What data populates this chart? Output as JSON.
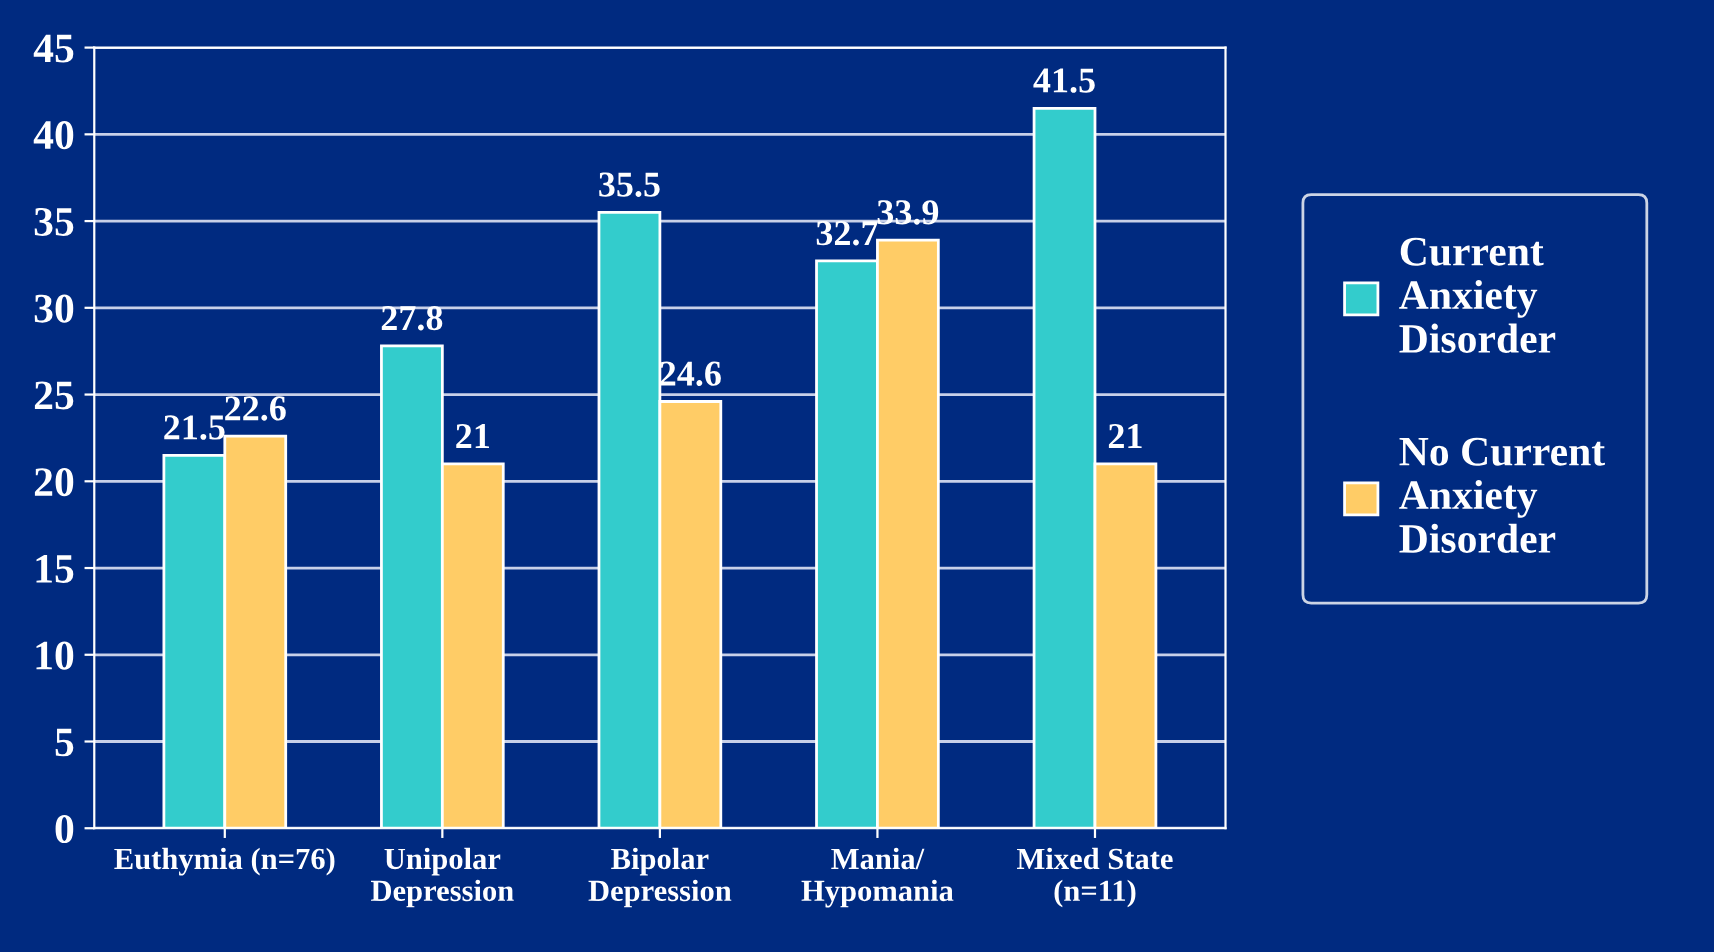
{
  "chart_data": {
    "type": "bar",
    "categories": [
      "Euthymia (n=76)",
      "Unipolar\nDepression",
      "Bipolar\nDepression",
      "Mania/\nHypomania",
      "Mixed State\n(n=11)"
    ],
    "series": [
      {
        "name": "Current\nAnxiety\nDisorder",
        "color": "#33cccc",
        "values": [
          21.5,
          27.8,
          35.5,
          32.7,
          41.5
        ]
      },
      {
        "name": "No Current\nAnxiety\nDisorder",
        "color": "#ffcc66",
        "values": [
          22.6,
          21,
          24.6,
          33.9,
          21
        ]
      }
    ],
    "ylim": [
      0,
      45
    ],
    "yticks": [
      0,
      5,
      10,
      15,
      20,
      25,
      30,
      35,
      40,
      45
    ],
    "grid": "y",
    "legend": "right",
    "data_labels": true
  }
}
